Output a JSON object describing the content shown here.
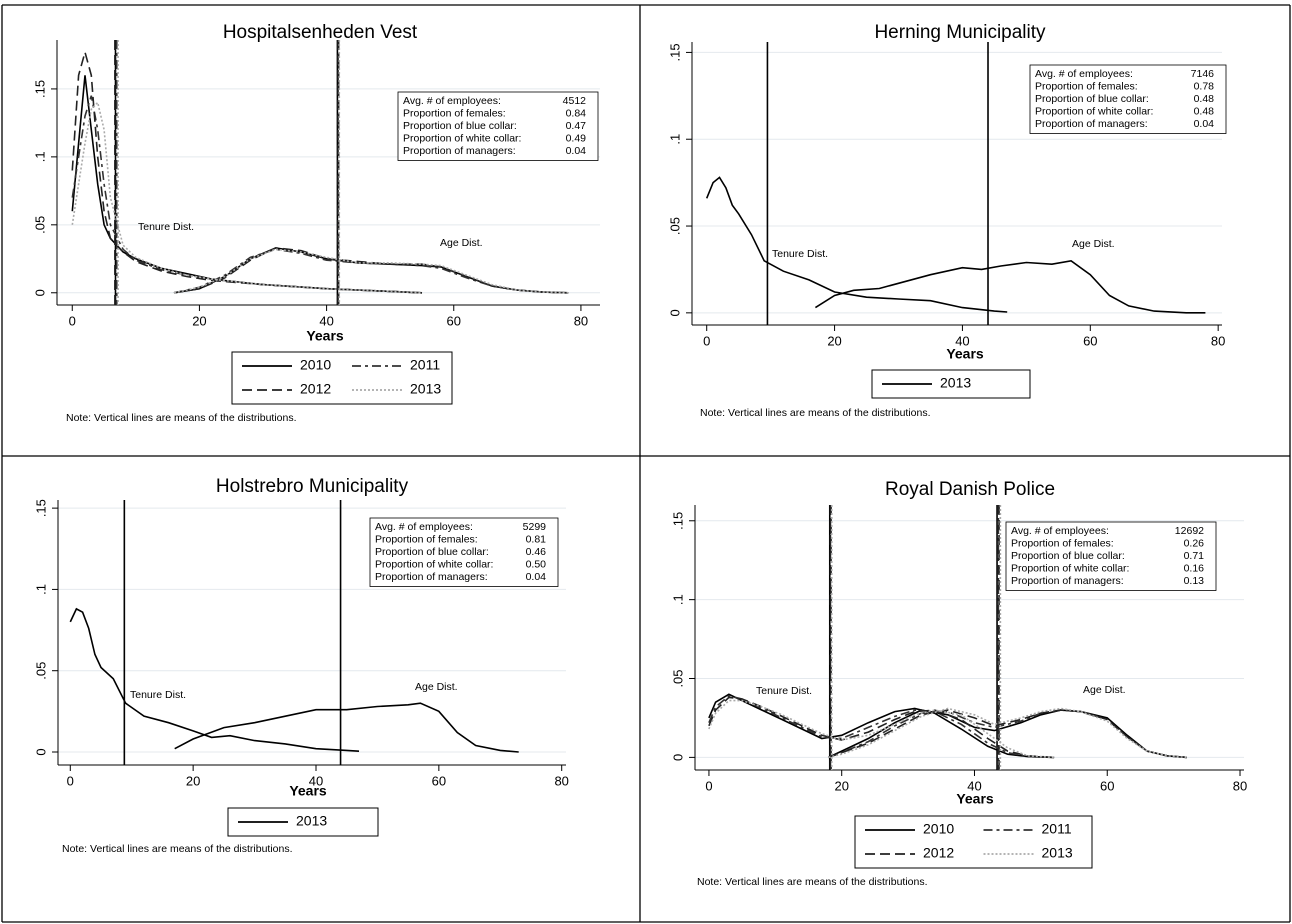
{
  "chart_data": [
    {
      "type": "line",
      "title": "Hospitalsenheden Vest",
      "x_label": "Years",
      "xlim": [
        -2.4,
        83
      ],
      "ylim": [
        -0.009,
        0.186
      ],
      "xticks": [
        0,
        20,
        40,
        60,
        80
      ],
      "yticks": [
        0,
        {
          "value": 0.05,
          "label": ".05"
        },
        {
          "value": 0.1,
          "label": ".1"
        },
        {
          "value": 0.15,
          "label": ".15"
        }
      ],
      "grid": true,
      "annotations": [
        "Tenure Dist.",
        "Age Dist."
      ],
      "stats": [
        [
          "Avg. # of employees:",
          "4512"
        ],
        [
          "Proportion of females:",
          "0.84"
        ],
        [
          "Proportion of blue collar:",
          "0.47"
        ],
        [
          "Proportion of white collar:",
          "0.49"
        ],
        [
          "Proportion of managers:",
          "0.04"
        ]
      ],
      "note": "Note: Vertical lines are means of the distributions.",
      "series": [
        {
          "name": "2010",
          "color": "#000000",
          "dash": "solid",
          "tenure_x": [
            0,
            1,
            2,
            3,
            4,
            5,
            6,
            8,
            10,
            14,
            18,
            22,
            30,
            40,
            50,
            55
          ],
          "tenure_values": [
            0.06,
            0.11,
            0.16,
            0.12,
            0.08,
            0.05,
            0.04,
            0.03,
            0.025,
            0.018,
            0.014,
            0.01,
            0.006,
            0.003,
            0.001,
            0
          ],
          "age_x": [
            16,
            20,
            24,
            28,
            32,
            36,
            40,
            45,
            50,
            55,
            58,
            62,
            66,
            70,
            74,
            78
          ],
          "age_values": [
            0,
            0.003,
            0.012,
            0.025,
            0.033,
            0.03,
            0.025,
            0.022,
            0.021,
            0.02,
            0.019,
            0.012,
            0.005,
            0.002,
            0.0005,
            0
          ],
          "tenure_mean": 6.8,
          "age_mean": 41.7
        },
        {
          "name": "2011",
          "color": "#333333",
          "dash": "dashdot",
          "tenure_x": [
            0,
            1,
            2,
            3,
            4,
            5,
            6,
            8,
            10,
            14,
            18,
            22,
            30,
            40,
            50,
            55
          ],
          "tenure_values": [
            0.07,
            0.1,
            0.13,
            0.145,
            0.12,
            0.08,
            0.05,
            0.032,
            0.024,
            0.017,
            0.013,
            0.01,
            0.006,
            0.003,
            0.001,
            0
          ],
          "age_x": [
            16,
            20,
            24,
            28,
            32,
            36,
            40,
            45,
            50,
            55,
            58,
            62,
            66,
            70,
            74,
            78
          ],
          "age_values": [
            0,
            0.004,
            0.013,
            0.026,
            0.032,
            0.029,
            0.024,
            0.022,
            0.021,
            0.02,
            0.018,
            0.011,
            0.005,
            0.002,
            0.0005,
            0
          ],
          "tenure_mean": 7.0,
          "age_mean": 41.9
        },
        {
          "name": "2012",
          "color": "#222222",
          "dash": "longdash",
          "tenure_x": [
            0,
            1,
            2,
            3,
            4,
            5,
            6,
            8,
            10,
            14,
            18,
            22,
            30,
            40,
            50,
            55
          ],
          "tenure_values": [
            0.09,
            0.16,
            0.177,
            0.16,
            0.1,
            0.06,
            0.04,
            0.03,
            0.023,
            0.016,
            0.012,
            0.009,
            0.006,
            0.003,
            0.001,
            0
          ],
          "age_x": [
            16,
            20,
            24,
            28,
            32,
            36,
            40,
            45,
            50,
            55,
            58,
            62,
            66,
            70,
            74,
            78
          ],
          "age_values": [
            0,
            0.003,
            0.011,
            0.024,
            0.033,
            0.031,
            0.025,
            0.023,
            0.021,
            0.021,
            0.019,
            0.012,
            0.005,
            0.002,
            0.0005,
            0
          ],
          "tenure_mean": 6.7,
          "age_mean": 41.8
        },
        {
          "name": "2013",
          "color": "#aaaaaa",
          "dash": "dot",
          "tenure_x": [
            0,
            1,
            2,
            3,
            4,
            5,
            6,
            8,
            10,
            14,
            18,
            22,
            30,
            40,
            50,
            55
          ],
          "tenure_values": [
            0.05,
            0.08,
            0.11,
            0.135,
            0.14,
            0.12,
            0.07,
            0.035,
            0.026,
            0.018,
            0.013,
            0.01,
            0.006,
            0.003,
            0.001,
            0
          ],
          "age_x": [
            16,
            20,
            24,
            28,
            32,
            36,
            40,
            45,
            50,
            55,
            58,
            62,
            66,
            70,
            74,
            78
          ],
          "age_values": [
            0,
            0.004,
            0.012,
            0.025,
            0.032,
            0.03,
            0.026,
            0.022,
            0.022,
            0.021,
            0.02,
            0.013,
            0.006,
            0.002,
            0.0005,
            0
          ],
          "tenure_mean": 7.2,
          "age_mean": 42.0
        }
      ]
    },
    {
      "type": "line",
      "title": "Herning Municipality",
      "x_label": "Years",
      "xlim": [
        -2.3,
        80.6
      ],
      "ylim": [
        -0.007,
        0.156
      ],
      "xticks": [
        0,
        20,
        40,
        60,
        80
      ],
      "yticks": [
        0,
        {
          "value": 0.05,
          "label": ".05"
        },
        {
          "value": 0.1,
          "label": ".1"
        },
        {
          "value": 0.15,
          "label": ".15"
        }
      ],
      "grid": true,
      "annotations": [
        "Tenure Dist.",
        "Age Dist."
      ],
      "stats": [
        [
          "Avg. # of employees:",
          "7146"
        ],
        [
          "Proportion of females:",
          "0.78"
        ],
        [
          "Proportion of blue collar:",
          "0.48"
        ],
        [
          "Proportion of white collar:",
          "0.48"
        ],
        [
          "Proportion of managers:",
          "0.04"
        ]
      ],
      "note": "Note: Vertical lines are means of the distributions.",
      "series": [
        {
          "name": "2013",
          "color": "#000000",
          "dash": "solid",
          "tenure_x": [
            0,
            1,
            2,
            3,
            4,
            5,
            7,
            9,
            12,
            16,
            20,
            25,
            30,
            35,
            40,
            45,
            47
          ],
          "tenure_values": [
            0.066,
            0.075,
            0.078,
            0.072,
            0.062,
            0.057,
            0.045,
            0.03,
            0.024,
            0.019,
            0.012,
            0.009,
            0.008,
            0.007,
            0.003,
            0.001,
            0.0005
          ],
          "age_x": [
            17,
            20,
            23,
            27,
            30,
            35,
            40,
            43,
            46,
            50,
            54,
            57,
            60,
            63,
            66,
            70,
            75,
            78
          ],
          "age_values": [
            0.003,
            0.01,
            0.013,
            0.014,
            0.017,
            0.022,
            0.026,
            0.025,
            0.027,
            0.029,
            0.028,
            0.03,
            0.022,
            0.01,
            0.004,
            0.001,
            0,
            0
          ],
          "tenure_mean": 9.5,
          "age_mean": 44
        }
      ]
    },
    {
      "type": "line",
      "title": "Holstrebro Municipality",
      "x_label": "Years",
      "xlim": [
        -2,
        80.7
      ],
      "ylim": [
        -0.008,
        0.155
      ],
      "xticks": [
        0,
        20,
        40,
        60,
        80
      ],
      "yticks": [
        0,
        {
          "value": 0.05,
          "label": ".05"
        },
        {
          "value": 0.1,
          "label": ".1"
        },
        {
          "value": 0.15,
          "label": ".15"
        }
      ],
      "grid": true,
      "annotations": [
        "Tenure Dist.",
        "Age Dist."
      ],
      "stats": [
        [
          "Avg. # of employees:",
          "5299"
        ],
        [
          "Proportion of females:",
          "0.81"
        ],
        [
          "Proportion of blue collar:",
          "0.46"
        ],
        [
          "Proportion of white collar:",
          "0.50"
        ],
        [
          "Proportion of managers:",
          "0.04"
        ]
      ],
      "note": "Note: Vertical lines are means of the distributions.",
      "series": [
        {
          "name": "2013",
          "color": "#000000",
          "dash": "solid",
          "tenure_x": [
            0,
            1,
            2,
            3,
            4,
            5,
            7,
            9,
            12,
            16,
            20,
            23,
            26,
            30,
            35,
            40,
            45,
            47
          ],
          "tenure_values": [
            0.08,
            0.088,
            0.086,
            0.076,
            0.06,
            0.052,
            0.045,
            0.03,
            0.022,
            0.018,
            0.013,
            0.009,
            0.01,
            0.007,
            0.005,
            0.002,
            0.001,
            0.0005
          ],
          "age_x": [
            17,
            20,
            25,
            30,
            35,
            40,
            45,
            50,
            55,
            57,
            60,
            63,
            66,
            70,
            73
          ],
          "age_values": [
            0.002,
            0.008,
            0.015,
            0.018,
            0.022,
            0.026,
            0.026,
            0.028,
            0.029,
            0.03,
            0.025,
            0.012,
            0.004,
            0.001,
            0
          ],
          "tenure_mean": 8.8,
          "age_mean": 44
        }
      ]
    },
    {
      "type": "line",
      "title": "Royal Danish Police",
      "x_label": "Years",
      "xlim": [
        -2.1,
        80.6
      ],
      "ylim": [
        -0.008,
        0.16
      ],
      "xticks": [
        0,
        20,
        40,
        60,
        80
      ],
      "yticks": [
        0,
        {
          "value": 0.05,
          "label": ".05"
        },
        {
          "value": 0.1,
          "label": ".1"
        },
        {
          "value": 0.15,
          "label": ".15"
        }
      ],
      "grid": true,
      "annotations": [
        "Tenure Dist.",
        "Age Dist."
      ],
      "stats": [
        [
          "Avg. # of employees:",
          "12692"
        ],
        [
          "Proportion of females:",
          "0.26"
        ],
        [
          "Proportion of blue collar:",
          "0.71"
        ],
        [
          "Proportion of white collar:",
          "0.16"
        ],
        [
          "Proportion of managers:",
          "0.13"
        ]
      ],
      "note": "Note: Vertical lines are means of the distributions.",
      "series": [
        {
          "name": "2010",
          "color": "#000000",
          "dash": "solid",
          "tenure_x": [
            0,
            1,
            3,
            5,
            8,
            11,
            14,
            17,
            20,
            24,
            28,
            31,
            34,
            38,
            42,
            45,
            48,
            52
          ],
          "tenure_values": [
            0.025,
            0.035,
            0.04,
            0.036,
            0.03,
            0.024,
            0.018,
            0.012,
            0.014,
            0.022,
            0.029,
            0.031,
            0.028,
            0.018,
            0.007,
            0.002,
            0.0005,
            0
          ],
          "age_x": [
            18,
            20,
            24,
            28,
            32,
            36,
            40,
            43,
            47,
            50,
            53,
            56,
            60,
            63,
            66,
            69,
            72
          ],
          "age_values": [
            0,
            0.004,
            0.012,
            0.022,
            0.03,
            0.027,
            0.019,
            0.017,
            0.022,
            0.027,
            0.03,
            0.029,
            0.025,
            0.014,
            0.004,
            0.001,
            0
          ],
          "tenure_mean": 18.2,
          "age_mean": 43.4
        },
        {
          "name": "2011",
          "color": "#333333",
          "dash": "dashdot",
          "tenure_x": [
            0,
            1,
            3,
            5,
            8,
            11,
            14,
            17,
            20,
            24,
            28,
            31,
            34,
            38,
            42,
            45,
            48,
            52
          ],
          "tenure_values": [
            0.022,
            0.032,
            0.039,
            0.037,
            0.031,
            0.025,
            0.019,
            0.013,
            0.012,
            0.019,
            0.026,
            0.03,
            0.029,
            0.021,
            0.009,
            0.003,
            0.0005,
            0
          ],
          "age_x": [
            18,
            20,
            24,
            28,
            32,
            36,
            40,
            43,
            47,
            50,
            53,
            56,
            60,
            63,
            66,
            69,
            72
          ],
          "age_values": [
            0,
            0.003,
            0.01,
            0.02,
            0.028,
            0.029,
            0.022,
            0.019,
            0.023,
            0.028,
            0.03,
            0.029,
            0.024,
            0.013,
            0.004,
            0.001,
            0
          ],
          "tenure_mean": 18.4,
          "age_mean": 43.6
        },
        {
          "name": "2012",
          "color": "#222222",
          "dash": "longdash",
          "tenure_x": [
            0,
            1,
            3,
            5,
            8,
            11,
            14,
            17,
            20,
            24,
            28,
            31,
            34,
            38,
            42,
            45,
            48,
            52
          ],
          "tenure_values": [
            0.02,
            0.03,
            0.038,
            0.037,
            0.032,
            0.026,
            0.02,
            0.014,
            0.011,
            0.016,
            0.024,
            0.029,
            0.03,
            0.024,
            0.012,
            0.004,
            0.001,
            0
          ],
          "age_x": [
            18,
            20,
            24,
            28,
            32,
            36,
            40,
            43,
            47,
            50,
            53,
            56,
            60,
            63,
            66,
            69,
            72
          ],
          "age_values": [
            0,
            0.003,
            0.009,
            0.018,
            0.027,
            0.03,
            0.025,
            0.02,
            0.024,
            0.028,
            0.03,
            0.029,
            0.024,
            0.013,
            0.004,
            0.001,
            0
          ],
          "tenure_mean": 18.3,
          "age_mean": 43.7
        },
        {
          "name": "2013",
          "color": "#aaaaaa",
          "dash": "dot",
          "tenure_x": [
            0,
            1,
            3,
            5,
            8,
            11,
            14,
            17,
            20,
            24,
            28,
            31,
            34,
            38,
            42,
            45,
            48,
            52
          ],
          "tenure_values": [
            0.018,
            0.028,
            0.036,
            0.036,
            0.032,
            0.027,
            0.021,
            0.015,
            0.011,
            0.014,
            0.021,
            0.027,
            0.03,
            0.027,
            0.015,
            0.006,
            0.001,
            0
          ],
          "age_x": [
            18,
            20,
            24,
            28,
            32,
            36,
            40,
            43,
            47,
            50,
            53,
            56,
            60,
            63,
            66,
            69,
            72
          ],
          "age_values": [
            0,
            0.002,
            0.008,
            0.017,
            0.026,
            0.031,
            0.027,
            0.021,
            0.025,
            0.029,
            0.031,
            0.029,
            0.023,
            0.012,
            0.004,
            0.001,
            0
          ],
          "tenure_mean": 18.5,
          "age_mean": 43.9
        }
      ]
    }
  ]
}
